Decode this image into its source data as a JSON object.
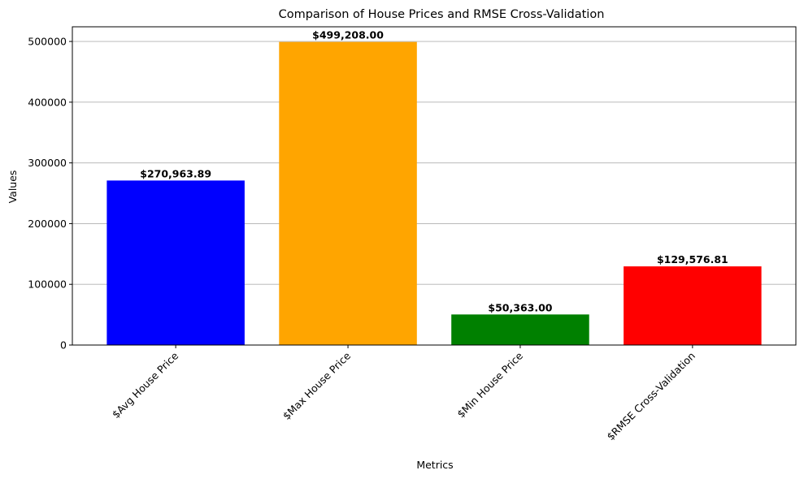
{
  "chart_data": {
    "type": "bar",
    "title": "Comparison of House Prices and RMSE Cross-Validation",
    "xlabel": "Metrics",
    "ylabel": "Values",
    "categories": [
      "$Avg House Price",
      "$Max House Price",
      "$Min House Price",
      "$RMSE Cross-Validation"
    ],
    "values": [
      270963.89,
      499208.0,
      50363.0,
      129576.81
    ],
    "data_labels": [
      "$270,963.89",
      "$499,208.00",
      "$50,363.00",
      "$129,576.81"
    ],
    "colors": [
      "#0000ff",
      "#ffa500",
      "#008000",
      "#ff0000"
    ],
    "ylim": [
      0,
      524162
    ],
    "yticks": [
      0,
      100000,
      200000,
      300000,
      400000,
      500000
    ],
    "ytick_labels": [
      "0",
      "100000",
      "200000",
      "300000",
      "400000",
      "500000"
    ],
    "grid": "y-axis",
    "legend": "none"
  }
}
